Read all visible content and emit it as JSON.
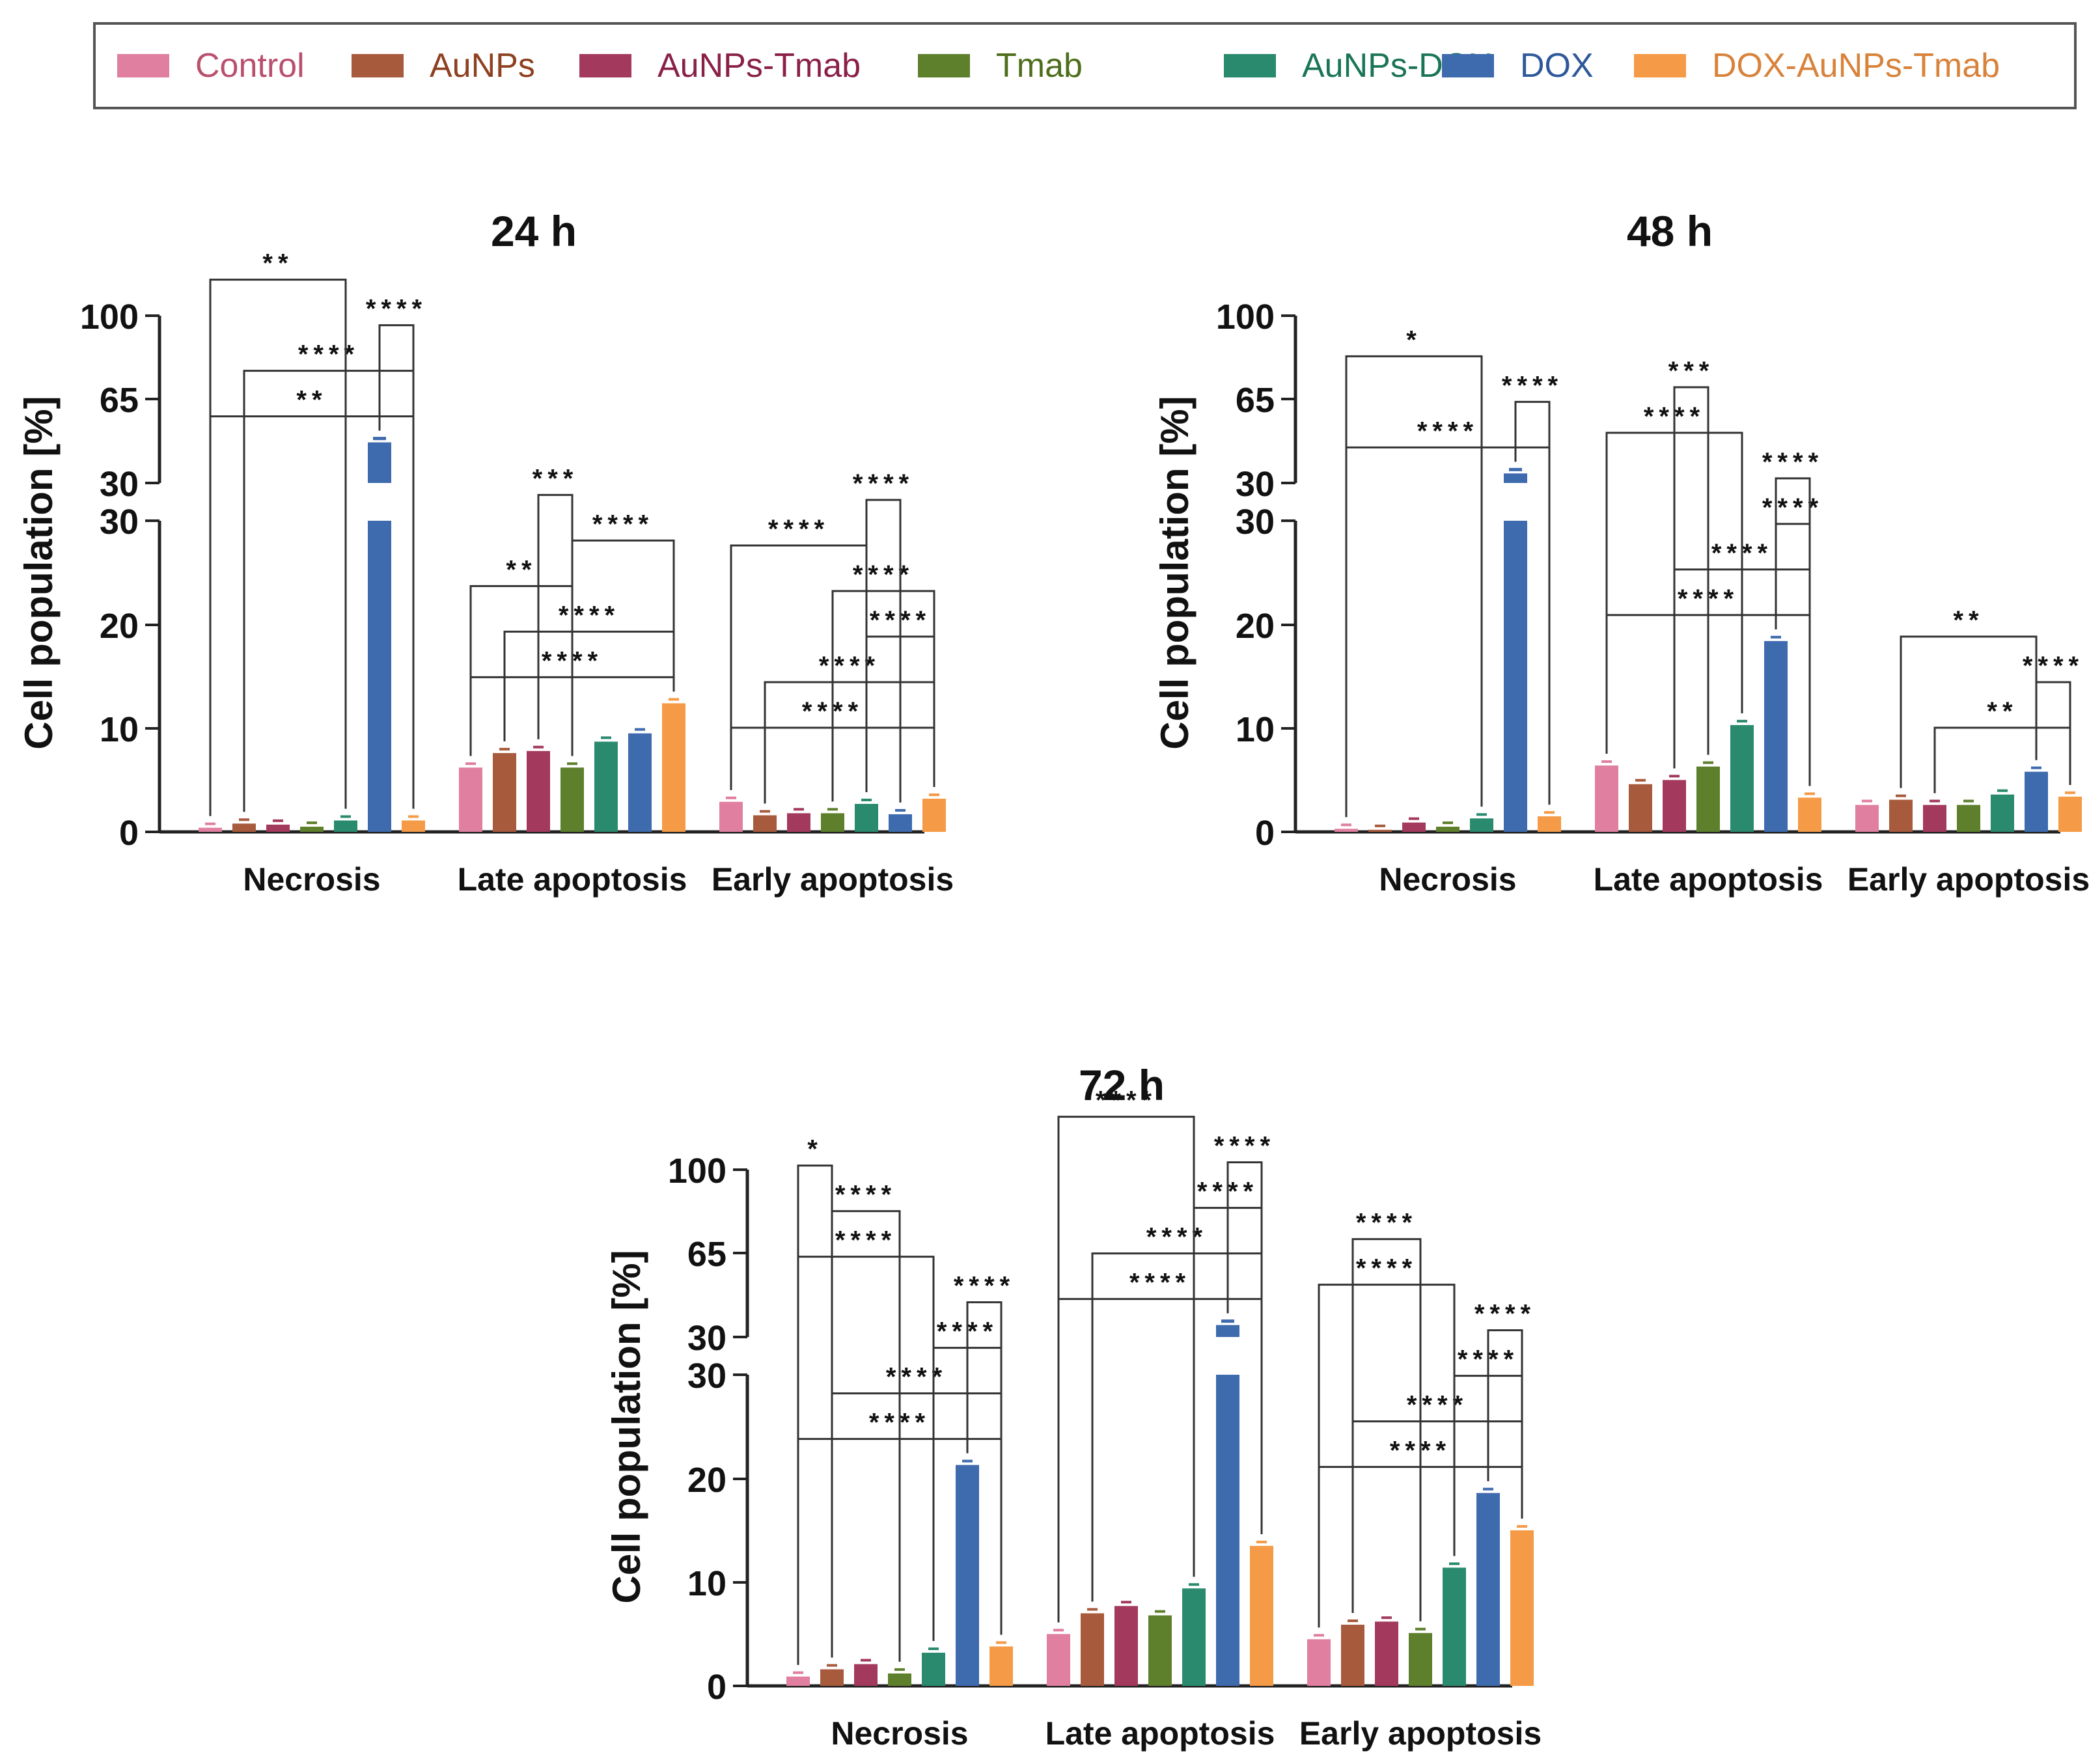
{
  "legend": [
    {
      "label": "Control",
      "color": "#E07FA0",
      "text_color": "#B8506E"
    },
    {
      "label": "AuNPs",
      "color": "#A85A3C",
      "text_color": "#8E4020"
    },
    {
      "label": "AuNPs-Tmab",
      "color": "#A33A5E",
      "text_color": "#8A2048"
    },
    {
      "label": "Tmab",
      "color": "#5E7F2C",
      "text_color": "#4E6E1C"
    },
    {
      "label": "AuNPs-DOX",
      "color": "#2A8A6E",
      "text_color": "#1A7458"
    },
    {
      "label": "DOX",
      "color": "#3E6AAE",
      "text_color": "#2E589A"
    },
    {
      "label": "DOX-AuNPs-Tmab",
      "color": "#F59A46",
      "text_color": "#D8823A"
    }
  ],
  "y_axis_label": "Cell population [%]",
  "chart_data": [
    {
      "type": "bar",
      "title": "24 h",
      "ylabel": "Cell population [%]",
      "y_ticks_lower": [
        "0",
        "10",
        "20",
        "30"
      ],
      "y_ticks_upper": [
        "30",
        "65",
        "100"
      ],
      "categories": [
        "Necrosis",
        "Late apoptosis",
        "Early apoptosis"
      ],
      "series": [
        {
          "name": "Control",
          "values": [
            0.4,
            6.2,
            2.9
          ]
        },
        {
          "name": "AuNPs",
          "values": [
            0.8,
            7.6,
            1.6
          ]
        },
        {
          "name": "AuNPs-Tmab",
          "values": [
            0.7,
            7.8,
            1.8
          ]
        },
        {
          "name": "Tmab",
          "values": [
            0.5,
            6.2,
            1.8
          ]
        },
        {
          "name": "AuNPs-DOX",
          "values": [
            1.1,
            8.7,
            2.7
          ]
        },
        {
          "name": "DOX",
          "values": [
            47.0,
            9.5,
            1.7
          ]
        },
        {
          "name": "DOX-AuNPs-Tmab",
          "values": [
            1.1,
            12.4,
            3.2
          ]
        }
      ],
      "significance": [
        {
          "group": "Necrosis",
          "text": "**",
          "from": 0,
          "to": 6
        },
        {
          "group": "Necrosis",
          "text": "****",
          "from": 1,
          "to": 6
        },
        {
          "group": "Necrosis",
          "text": "****",
          "from": 5,
          "to": 6
        },
        {
          "group": "Necrosis",
          "text": "**",
          "from": 0,
          "to": 4
        },
        {
          "group": "Late apoptosis",
          "text": "****",
          "from": 0,
          "to": 6
        },
        {
          "group": "Late apoptosis",
          "text": "****",
          "from": 1,
          "to": 6
        },
        {
          "group": "Late apoptosis",
          "text": "**",
          "from": 0,
          "to": 3
        },
        {
          "group": "Late apoptosis",
          "text": "****",
          "from": 3,
          "to": 6
        },
        {
          "group": "Late apoptosis",
          "text": "***",
          "from": 2,
          "to": 3
        },
        {
          "group": "Early apoptosis",
          "text": "****",
          "from": 0,
          "to": 6
        },
        {
          "group": "Early apoptosis",
          "text": "****",
          "from": 1,
          "to": 6
        },
        {
          "group": "Early apoptosis",
          "text": "****",
          "from": 4,
          "to": 6
        },
        {
          "group": "Early apoptosis",
          "text": "****",
          "from": 3,
          "to": 6
        },
        {
          "group": "Early apoptosis",
          "text": "****",
          "from": 0,
          "to": 4
        },
        {
          "group": "Early apoptosis",
          "text": "****",
          "from": 4,
          "to": 5
        }
      ]
    },
    {
      "type": "bar",
      "title": "48 h",
      "ylabel": "Cell population [%]",
      "y_ticks_lower": [
        "0",
        "10",
        "20",
        "30"
      ],
      "y_ticks_upper": [
        "30",
        "65",
        "100"
      ],
      "categories": [
        "Necrosis",
        "Late apoptosis",
        "Early apoptosis"
      ],
      "series": [
        {
          "name": "Control",
          "values": [
            0.3,
            6.4,
            2.6
          ]
        },
        {
          "name": "AuNPs",
          "values": [
            0.2,
            4.6,
            3.1
          ]
        },
        {
          "name": "AuNPs-Tmab",
          "values": [
            0.9,
            5.0,
            2.6
          ]
        },
        {
          "name": "Tmab",
          "values": [
            0.5,
            6.3,
            2.6
          ]
        },
        {
          "name": "AuNPs-DOX",
          "values": [
            1.3,
            10.3,
            3.6
          ]
        },
        {
          "name": "DOX",
          "values": [
            34.0,
            18.4,
            5.8
          ]
        },
        {
          "name": "DOX-AuNPs-Tmab",
          "values": [
            1.5,
            3.3,
            3.4
          ]
        }
      ],
      "significance": [
        {
          "group": "Necrosis",
          "text": "****",
          "from": 0,
          "to": 6
        },
        {
          "group": "Necrosis",
          "text": "****",
          "from": 5,
          "to": 6
        },
        {
          "group": "Necrosis",
          "text": "*",
          "from": 0,
          "to": 4
        },
        {
          "group": "Late apoptosis",
          "text": "****",
          "from": 0,
          "to": 6
        },
        {
          "group": "Late apoptosis",
          "text": "****",
          "from": 2,
          "to": 6
        },
        {
          "group": "Late apoptosis",
          "text": "****",
          "from": 5,
          "to": 6
        },
        {
          "group": "Late apoptosis",
          "text": "****",
          "from": 5,
          "to": 6
        },
        {
          "group": "Late apoptosis",
          "text": "****",
          "from": 0,
          "to": 4
        },
        {
          "group": "Late apoptosis",
          "text": "***",
          "from": 2,
          "to": 3
        },
        {
          "group": "Early apoptosis",
          "text": "**",
          "from": 2,
          "to": 6
        },
        {
          "group": "Early apoptosis",
          "text": "****",
          "from": 5,
          "to": 6
        },
        {
          "group": "Early apoptosis",
          "text": "**",
          "from": 1,
          "to": 5
        }
      ]
    },
    {
      "type": "bar",
      "title": "72 h",
      "ylabel": "Cell population [%]",
      "y_ticks_lower": [
        "0",
        "10",
        "20",
        "30"
      ],
      "y_ticks_upper": [
        "30",
        "65",
        "100"
      ],
      "categories": [
        "Necrosis",
        "Late apoptosis",
        "Early apoptosis"
      ],
      "series": [
        {
          "name": "Control",
          "values": [
            0.9,
            5.0,
            4.5
          ]
        },
        {
          "name": "AuNPs",
          "values": [
            1.6,
            7.0,
            5.9
          ]
        },
        {
          "name": "AuNPs-Tmab",
          "values": [
            2.1,
            7.7,
            6.2
          ]
        },
        {
          "name": "Tmab",
          "values": [
            1.2,
            6.8,
            5.1
          ]
        },
        {
          "name": "AuNPs-DOX",
          "values": [
            3.2,
            9.4,
            11.4
          ]
        },
        {
          "name": "DOX",
          "values": [
            21.3,
            35.0,
            18.6
          ]
        },
        {
          "name": "DOX-AuNPs-Tmab",
          "values": [
            3.8,
            13.5,
            15.0
          ]
        }
      ],
      "significance": [
        {
          "group": "Necrosis",
          "text": "****",
          "from": 0,
          "to": 6
        },
        {
          "group": "Necrosis",
          "text": "****",
          "from": 1,
          "to": 6
        },
        {
          "group": "Necrosis",
          "text": "****",
          "from": 4,
          "to": 6
        },
        {
          "group": "Necrosis",
          "text": "****",
          "from": 5,
          "to": 6
        },
        {
          "group": "Necrosis",
          "text": "****",
          "from": 0,
          "to": 4
        },
        {
          "group": "Necrosis",
          "text": "****",
          "from": 1,
          "to": 3
        },
        {
          "group": "Necrosis",
          "text": "*",
          "from": 0,
          "to": 1
        },
        {
          "group": "Late apoptosis",
          "text": "****",
          "from": 0,
          "to": 6
        },
        {
          "group": "Late apoptosis",
          "text": "****",
          "from": 1,
          "to": 6
        },
        {
          "group": "Late apoptosis",
          "text": "****",
          "from": 4,
          "to": 6
        },
        {
          "group": "Late apoptosis",
          "text": "****",
          "from": 5,
          "to": 6
        },
        {
          "group": "Late apoptosis",
          "text": "****",
          "from": 0,
          "to": 4
        },
        {
          "group": "Early apoptosis",
          "text": "****",
          "from": 0,
          "to": 6
        },
        {
          "group": "Early apoptosis",
          "text": "****",
          "from": 1,
          "to": 6
        },
        {
          "group": "Early apoptosis",
          "text": "****",
          "from": 4,
          "to": 6
        },
        {
          "group": "Early apoptosis",
          "text": "****",
          "from": 5,
          "to": 6
        },
        {
          "group": "Early apoptosis",
          "text": "****",
          "from": 0,
          "to": 4
        },
        {
          "group": "Early apoptosis",
          "text": "****",
          "from": 1,
          "to": 3
        }
      ]
    }
  ]
}
